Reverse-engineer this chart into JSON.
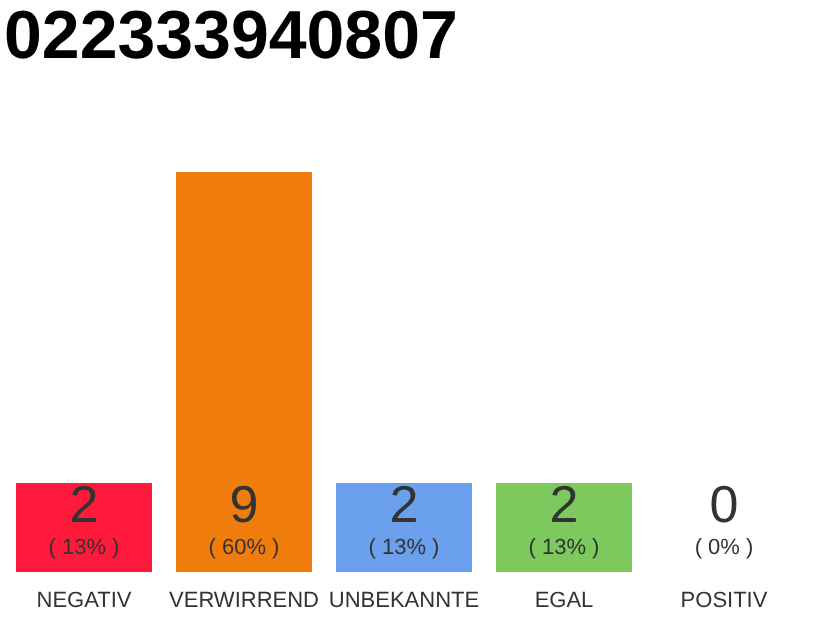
{
  "chart_data": {
    "type": "bar",
    "title": "022333940807",
    "categories": [
      "NEGATIV",
      "VERWIRREND",
      "UNBEKANNTE",
      "EGAL",
      "POSITIV"
    ],
    "values": [
      2,
      9,
      2,
      2,
      0
    ],
    "colors": [
      "#ff1a3c",
      "#f07c0c",
      "#6aa0ee",
      "#7dc95e",
      "#bbbbbb"
    ],
    "data_labels": true,
    "annotations": [
      "( 13% )",
      "( 60% )",
      "( 13% )",
      "( 13% )",
      "( 0% )"
    ],
    "grid": false
  }
}
